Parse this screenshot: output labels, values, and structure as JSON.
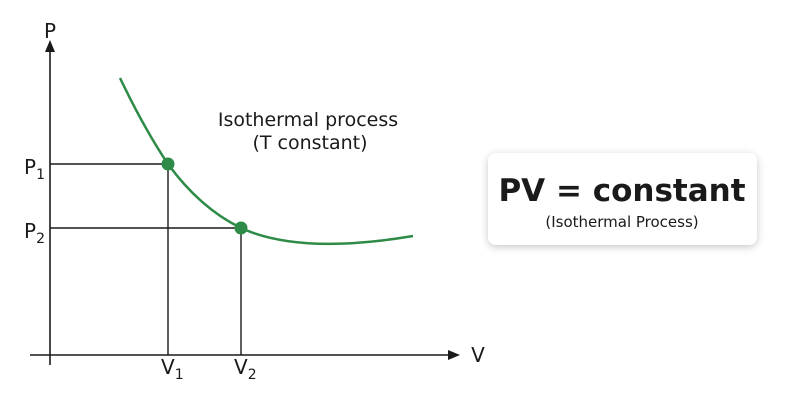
{
  "axes": {
    "y_label": "P",
    "x_label": "V"
  },
  "pressure_labels": [
    {
      "main": "P",
      "sub": "1"
    },
    {
      "main": "P",
      "sub": "2"
    }
  ],
  "volume_labels": [
    {
      "main": "V",
      "sub": "1"
    },
    {
      "main": "V",
      "sub": "2"
    }
  ],
  "annotation": {
    "line1": "Isothermal process",
    "line2": "(T constant)"
  },
  "formula_box": {
    "title": "PV = constant",
    "subtitle": "(Isothermal Process)"
  }
}
